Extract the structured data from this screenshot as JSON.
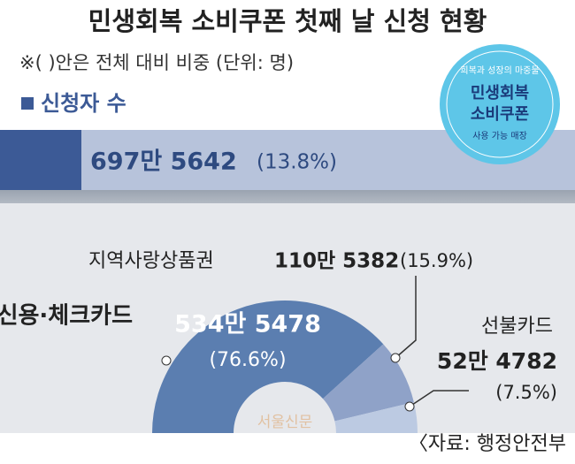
{
  "chart_data": {
    "type": "pie",
    "title": "민생회복 소비쿠폰 첫째 날 신청 현황",
    "subtitle": "※(  )안은 전체 대비 비중  (단위: 명)",
    "legend_label": "신청자 수",
    "total": {
      "amount_label": "697만 5642",
      "percent_label": "(13.8%)"
    },
    "badge": {
      "top": "희복과 성장의 마중물",
      "line1": "민생회복",
      "line2": "소비쿠폰",
      "bottom": "사용 가능 매장"
    },
    "categories": [
      "신용·체크카드",
      "지역사랑상품권",
      "선불카드"
    ],
    "amount_labels": [
      "534만 5478",
      "110만 5382",
      "52만 4782"
    ],
    "values": [
      76.6,
      15.9,
      7.5
    ],
    "value_labels": [
      "(76.6%)",
      "(15.9%)",
      "(7.5%)"
    ],
    "colors": [
      "#5b7eb0",
      "#8fa2c8",
      "#bccae2"
    ],
    "source": "〈자료: 행정안전부",
    "watermark": "서울신문"
  }
}
